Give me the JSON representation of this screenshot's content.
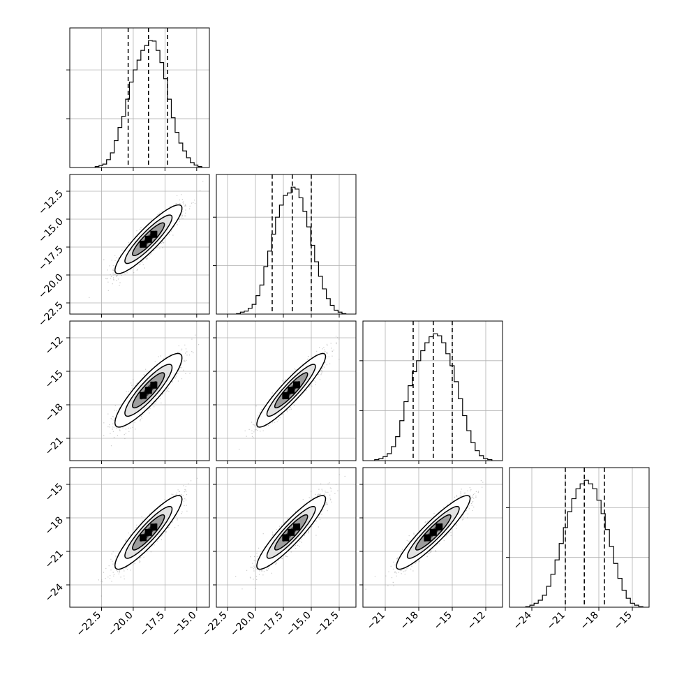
{
  "figure": {
    "type": "corner-plot",
    "n_params": 4
  },
  "colors": {
    "line": "#000000",
    "grid": "#b0b0b0",
    "scatter": "#9a9a9a",
    "background": "#ffffff"
  },
  "chart_data": {
    "type": "corner",
    "title": "",
    "grid": true,
    "parameters": [
      {
        "range": [
          -25.0,
          -14.0
        ],
        "ticks": [
          -22.5,
          -20.0,
          -17.5,
          -15.0
        ],
        "tick_labels": [
          "−22.5",
          "−20.0",
          "−17.5",
          "−15.0"
        ],
        "mean": -18.8,
        "sd": 1.2,
        "quantiles": [
          -20.4,
          -18.8,
          -17.3
        ]
      },
      {
        "range": [
          -23.5,
          -11.0
        ],
        "ticks": [
          -22.5,
          -20.0,
          -17.5,
          -15.0,
          -12.5
        ],
        "tick_labels": [
          "−22.5",
          "−20.0",
          "−17.5",
          "−15.0",
          "−12.5"
        ],
        "mean": -16.8,
        "sd": 1.4,
        "quantiles": [
          -18.5,
          -16.7,
          -15.0
        ]
      },
      {
        "range": [
          -23.0,
          -10.5
        ],
        "ticks": [
          -21,
          -18,
          -15,
          -12
        ],
        "tick_labels": [
          "−21",
          "−18",
          "−15",
          "−12"
        ],
        "mean": -16.7,
        "sd": 1.5,
        "quantiles": [
          -18.5,
          -16.7,
          -15.0
        ]
      },
      {
        "range": [
          -26.0,
          -13.5
        ],
        "ticks": [
          -24,
          -21,
          -18,
          -15
        ],
        "tick_labels": [
          "−24",
          "−21",
          "−18",
          "−15"
        ],
        "mean": -19.3,
        "sd": 1.5,
        "quantiles": [
          -21.0,
          -19.3,
          -17.5
        ]
      }
    ],
    "hist": [
      {
        "values": [
          2,
          4,
          7,
          16,
          30,
          55,
          82,
          105,
          140,
          175,
          200,
          220,
          240,
          250,
          260,
          259,
          240,
          215,
          182,
          140,
          102,
          72,
          50,
          34,
          20,
          10,
          5,
          2
        ]
      },
      {
        "values": [
          1,
          4,
          6,
          12,
          20,
          38,
          60,
          98,
          130,
          165,
          200,
          225,
          245,
          250,
          262,
          258,
          240,
          212,
          180,
          142,
          108,
          78,
          52,
          32,
          18,
          8,
          4,
          1
        ]
      },
      {
        "values": [
          2,
          4,
          8,
          14,
          28,
          48,
          80,
          118,
          150,
          178,
          200,
          220,
          236,
          248,
          254,
          250,
          236,
          214,
          190,
          158,
          124,
          90,
          60,
          36,
          20,
          10,
          4,
          2
        ]
      },
      {
        "values": [
          1,
          4,
          8,
          14,
          24,
          42,
          66,
          95,
          128,
          160,
          192,
          218,
          238,
          248,
          255,
          248,
          238,
          215,
          188,
          156,
          122,
          88,
          58,
          34,
          18,
          8,
          4,
          1
        ]
      }
    ],
    "correlations": [
      {
        "row": 1,
        "col": 0,
        "rho": 0.9
      },
      {
        "row": 2,
        "col": 0,
        "rho": 0.88
      },
      {
        "row": 2,
        "col": 1,
        "rho": 0.92
      },
      {
        "row": 3,
        "col": 0,
        "rho": 0.9
      },
      {
        "row": 3,
        "col": 1,
        "rho": 0.91
      },
      {
        "row": 3,
        "col": 2,
        "rho": 0.92
      }
    ]
  }
}
